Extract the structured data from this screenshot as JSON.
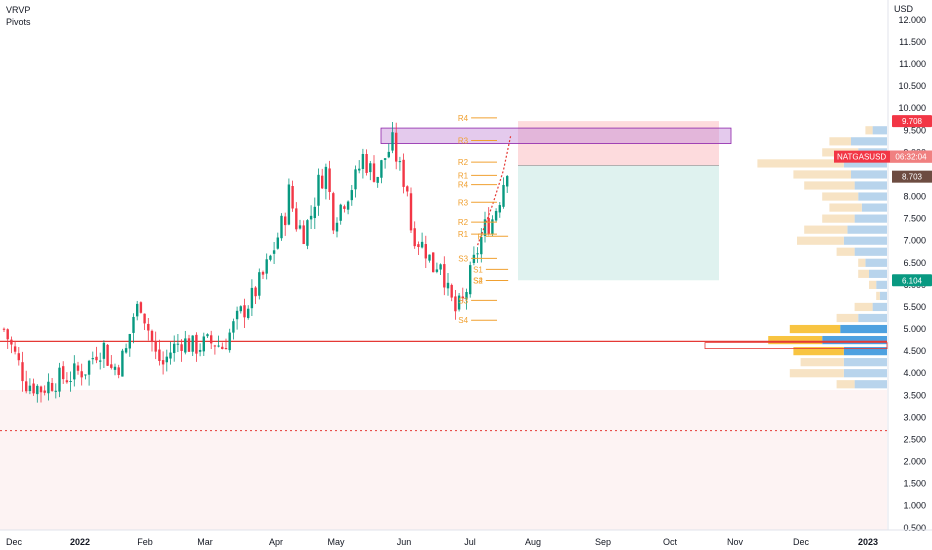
{
  "legend": {
    "line1": "VRVP",
    "line2": "Pivots"
  },
  "currency": "USD",
  "symbol_tag": {
    "symbol": "NATGASUSD",
    "countdown": "06:32:04",
    "price": "8.703"
  },
  "price_tags": [
    {
      "label": "9.708",
      "value": 9.708,
      "color": "#f23645"
    },
    {
      "label": "6.104",
      "value": 6.104,
      "color": "#089981"
    }
  ],
  "colors": {
    "up": "#089981",
    "down": "#f23645",
    "vp_up": "#b8d4ec",
    "vp_down": "#f7e3c4",
    "vp_poc_up": "#4ea1e0",
    "vp_poc_down": "#f8c441",
    "pivot": "#f0a030",
    "zone": "#c38ad6"
  },
  "chart_data": {
    "type": "candlestick",
    "y_axis": {
      "ylim": [
        0.45,
        12.45
      ],
      "ticks": [
        0.5,
        1.0,
        1.5,
        2.0,
        2.5,
        3.0,
        3.5,
        4.0,
        4.5,
        5.0,
        5.5,
        6.0,
        6.5,
        7.0,
        7.5,
        8.0,
        8.5,
        9.0,
        9.5,
        10.0,
        10.5,
        11.0,
        11.5,
        12.0
      ],
      "tick_labels": [
        "0.500",
        "1.000",
        "1.500",
        "2.000",
        "2.500",
        "3.000",
        "3.500",
        "4.000",
        "4.500",
        "5.000",
        "5.500",
        "6.000",
        "6.500",
        "7.000",
        "7.500",
        "8.000",
        "8.500",
        "9.000",
        "9.500",
        "10.000",
        "10.500",
        "11.000",
        "11.500",
        "12.000"
      ]
    },
    "x_axis": {
      "labels": [
        "Dec",
        "2022",
        "Feb",
        "Mar",
        "Apr",
        "May",
        "Jun",
        "Jul",
        "Aug",
        "Sep",
        "Oct",
        "Nov",
        "Dec",
        "2023"
      ]
    },
    "price_path": [
      {
        "t": 0,
        "v": 5.0
      },
      {
        "t": 3,
        "v": 4.4
      },
      {
        "t": 6,
        "v": 3.8
      },
      {
        "t": 10,
        "v": 3.65
      },
      {
        "t": 14,
        "v": 3.85
      },
      {
        "t": 18,
        "v": 3.95
      },
      {
        "t": 22,
        "v": 4.1
      },
      {
        "t": 25,
        "v": 4.5
      },
      {
        "t": 27,
        "v": 4.6
      },
      {
        "t": 29,
        "v": 4.1
      },
      {
        "t": 31,
        "v": 4.2
      },
      {
        "t": 33,
        "v": 4.5
      },
      {
        "t": 35,
        "v": 5.3
      },
      {
        "t": 37,
        "v": 5.6
      },
      {
        "t": 39,
        "v": 5.0
      },
      {
        "t": 41,
        "v": 4.4
      },
      {
        "t": 43,
        "v": 4.2
      },
      {
        "t": 45,
        "v": 4.5
      },
      {
        "t": 48,
        "v": 4.75
      },
      {
        "t": 51,
        "v": 4.6
      },
      {
        "t": 54,
        "v": 4.65
      },
      {
        "t": 57,
        "v": 4.7
      },
      {
        "t": 59,
        "v": 4.6
      },
      {
        "t": 61,
        "v": 4.9
      },
      {
        "t": 64,
        "v": 5.35
      },
      {
        "t": 67,
        "v": 5.7
      },
      {
        "t": 70,
        "v": 6.2
      },
      {
        "t": 72,
        "v": 6.6
      },
      {
        "t": 74,
        "v": 7.1
      },
      {
        "t": 76,
        "v": 7.6
      },
      {
        "t": 77,
        "v": 8.1
      },
      {
        "t": 79,
        "v": 7.4
      },
      {
        "t": 81,
        "v": 7.2
      },
      {
        "t": 83,
        "v": 7.6
      },
      {
        "t": 85,
        "v": 8.3
      },
      {
        "t": 87,
        "v": 8.6
      },
      {
        "t": 89,
        "v": 7.5
      },
      {
        "t": 91,
        "v": 7.8
      },
      {
        "t": 93,
        "v": 8.1
      },
      {
        "t": 95,
        "v": 8.4
      },
      {
        "t": 97,
        "v": 8.9
      },
      {
        "t": 99,
        "v": 8.6
      },
      {
        "t": 101,
        "v": 8.5
      },
      {
        "t": 103,
        "v": 8.9
      },
      {
        "t": 105,
        "v": 9.2
      },
      {
        "t": 107,
        "v": 8.6
      },
      {
        "t": 109,
        "v": 8.2
      },
      {
        "t": 110,
        "v": 7.3
      },
      {
        "t": 112,
        "v": 7.0
      },
      {
        "t": 114,
        "v": 6.8
      },
      {
        "t": 116,
        "v": 6.4
      },
      {
        "t": 118,
        "v": 6.6
      },
      {
        "t": 120,
        "v": 5.8
      },
      {
        "t": 122,
        "v": 5.4
      },
      {
        "t": 124,
        "v": 5.6
      },
      {
        "t": 126,
        "v": 6.2
      },
      {
        "t": 128,
        "v": 6.8
      },
      {
        "t": 130,
        "v": 7.3
      },
      {
        "t": 132,
        "v": 7.5
      },
      {
        "t": 134,
        "v": 8.0
      },
      {
        "t": 136,
        "v": 8.7
      }
    ],
    "volume_profile": [
      {
        "price": 9.5,
        "up": 20,
        "down": 10
      },
      {
        "price": 9.25,
        "up": 50,
        "down": 30
      },
      {
        "price": 9.0,
        "up": 40,
        "down": 50
      },
      {
        "price": 8.75,
        "up": 60,
        "down": 120
      },
      {
        "price": 8.5,
        "up": 50,
        "down": 80
      },
      {
        "price": 8.25,
        "up": 45,
        "down": 70
      },
      {
        "price": 8.0,
        "up": 40,
        "down": 50
      },
      {
        "price": 7.75,
        "up": 35,
        "down": 45
      },
      {
        "price": 7.5,
        "up": 45,
        "down": 45
      },
      {
        "price": 7.25,
        "up": 55,
        "down": 60
      },
      {
        "price": 7.0,
        "up": 60,
        "down": 65
      },
      {
        "price": 6.75,
        "up": 45,
        "down": 25
      },
      {
        "price": 6.5,
        "up": 30,
        "down": 10
      },
      {
        "price": 6.25,
        "up": 25,
        "down": 15
      },
      {
        "price": 6.0,
        "up": 15,
        "down": 10
      },
      {
        "price": 5.75,
        "up": 10,
        "down": 5
      },
      {
        "price": 5.5,
        "up": 20,
        "down": 25
      },
      {
        "price": 5.25,
        "up": 40,
        "down": 30
      },
      {
        "price": 5.0,
        "up": 65,
        "down": 70
      },
      {
        "price": 4.75,
        "up": 90,
        "down": 75
      },
      {
        "price": 4.5,
        "up": 60,
        "down": 70
      },
      {
        "price": 4.25,
        "up": 60,
        "down": 60
      },
      {
        "price": 4.0,
        "up": 60,
        "down": 75
      },
      {
        "price": 3.75,
        "up": 45,
        "down": 25
      }
    ],
    "poc_price": 4.625,
    "horizontal_line": 4.72,
    "dotted_line": 2.7,
    "supply_zone": {
      "from": 9.2,
      "to": 9.55
    },
    "position": {
      "entry": 8.703,
      "stop": 9.708,
      "target": 6.104
    },
    "pivot_sets": [
      {
        "t_from": 123,
        "t_to": 130,
        "levels": [
          {
            "label": "R4",
            "value": 9.78
          },
          {
            "label": "R3",
            "value": 9.27
          },
          {
            "label": "R2",
            "value": 8.78
          },
          {
            "label": "R1",
            "value": 8.48
          },
          {
            "label": "R4",
            "value": 8.27
          },
          {
            "label": "R3",
            "value": 7.87
          },
          {
            "label": "R2",
            "value": 7.42
          },
          {
            "label": "R1",
            "value": 7.15
          },
          {
            "label": "S3",
            "value": 6.6
          },
          {
            "label": "S3",
            "value": 5.65
          },
          {
            "label": "S4",
            "value": 5.2
          }
        ]
      },
      {
        "t_from": 127,
        "t_to": 133,
        "levels": [
          {
            "label": "P",
            "value": 7.1
          },
          {
            "label": "S1",
            "value": 6.35
          },
          {
            "label": "S2",
            "value": 6.1
          },
          {
            "label": "S4",
            "value": 6.1
          }
        ]
      }
    ]
  }
}
